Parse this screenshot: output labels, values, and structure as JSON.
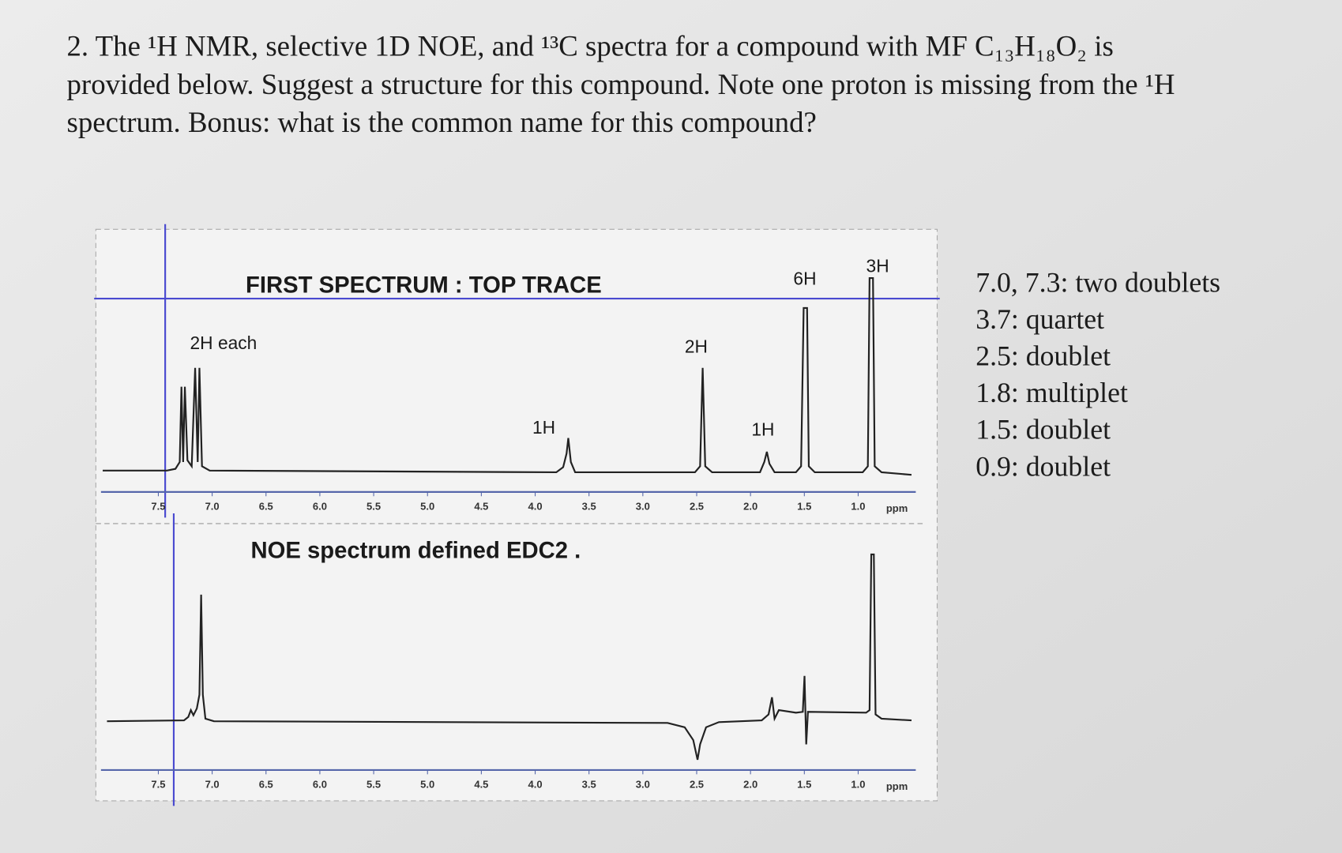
{
  "question": [
    "2. The ¹H NMR, selective 1D NOE, and ¹³C spectra for a compound with MF C₁₃H₁₈O₂ is",
    "provided below. Suggest a structure for this compound. Note one proton is missing from the ¹H",
    "spectrum. Bonus: what is the common name for this compound?"
  ],
  "spectra": [
    {
      "title": "FIRST SPECTRUM : TOP TRACE",
      "peak_labels": [
        "2H each",
        "1H",
        "2H",
        "1H",
        "6H",
        "3H"
      ],
      "axis_ticks": [
        "7.5",
        "7.0",
        "6.5",
        "6.0",
        "5.5",
        "5.0",
        "4.5",
        "4.0",
        "3.5",
        "3.0",
        "2.5",
        "2.0",
        "1.5",
        "1.0"
      ],
      "axis_unit": "ppm"
    },
    {
      "title": "NOE spectrum defined EDC2 .",
      "axis_ticks": [
        "7.5",
        "7.0",
        "6.5",
        "6.0",
        "5.5",
        "5.0",
        "4.5",
        "4.0",
        "3.5",
        "3.0",
        "2.5",
        "2.0",
        "1.5",
        "1.0"
      ],
      "axis_unit": "ppm"
    }
  ],
  "notes": [
    "7.0, 7.3: two doublets",
    "3.7: quartet",
    "2.5: doublet",
    "1.8: multiplet",
    "1.5: doublet",
    "0.9: doublet"
  ]
}
